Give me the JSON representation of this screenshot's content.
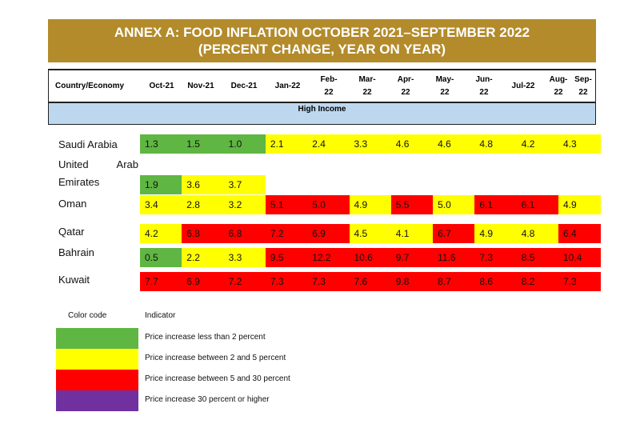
{
  "title": {
    "line1": "ANNEX A: FOOD INFLATION OCTOBER 2021–SEPTEMBER 2022",
    "line2": "(PERCENT CHANGE, YEAR ON YEAR)"
  },
  "columns": {
    "country": "Country/Economy",
    "months": [
      "Oct-21",
      "Nov-21",
      "Dec-21",
      "Jan-22",
      "Feb-\n22",
      "Mar-\n22",
      "Apr-\n22",
      "May-\n22",
      "Jun-\n22",
      "Jul-22",
      "Aug-\n22",
      "Sep-\n22"
    ]
  },
  "group_label": "High Income",
  "rows": [
    {
      "country": "Saudi Arabia",
      "values": [
        "1.3",
        "1.5",
        "1.0",
        "2.1",
        "2.4",
        "3.3",
        "4.6",
        "4.6",
        "4.8",
        "4.2",
        "4.3"
      ],
      "colors": [
        "g",
        "g",
        "g",
        "y",
        "y",
        "y",
        "y",
        "y",
        "y",
        "y",
        "y"
      ]
    },
    {
      "country": "United Arab Emirates",
      "country_line1": "United Arab",
      "country_line2": "Emirates",
      "values": [
        "1.9",
        "3.6",
        "3.7"
      ],
      "colors": [
        "g",
        "y",
        "y"
      ]
    },
    {
      "country": "Oman",
      "values": [
        "3.4",
        "2.8",
        "3.2",
        "5.1",
        "5.0",
        "4.9",
        "5.5",
        "5.0",
        "6.1",
        "6.1",
        "4.9"
      ],
      "colors": [
        "y",
        "y",
        "y",
        "r",
        "r",
        "y",
        "r",
        "y",
        "r",
        "r",
        "y"
      ]
    },
    {
      "country": "Qatar",
      "values": [
        "4.2",
        "6.8",
        "6.8",
        "7.2",
        "6.9",
        "4.5",
        "4.1",
        "6.7",
        "4.9",
        "4.8",
        "6.4"
      ],
      "colors": [
        "y",
        "r",
        "r",
        "r",
        "r",
        "y",
        "y",
        "r",
        "y",
        "y",
        "r"
      ]
    },
    {
      "country": "Bahrain",
      "values": [
        "0.5",
        "2.2",
        "3.3",
        "9.5",
        "12.2",
        "10.6",
        "9.7",
        "11.6",
        "7.3",
        "8.5",
        "10.4"
      ],
      "colors": [
        "g",
        "y",
        "y",
        "r",
        "r",
        "r",
        "r",
        "r",
        "r",
        "r",
        "r"
      ]
    },
    {
      "country": "Kuwait",
      "values": [
        "7.7",
        "6.9",
        "7.2",
        "7.3",
        "7.3",
        "7.6",
        "9.8",
        "8.7",
        "8.6",
        "8.2",
        "7.3"
      ],
      "colors": [
        "r",
        "r",
        "r",
        "r",
        "r",
        "r",
        "r",
        "r",
        "r",
        "r",
        "r"
      ]
    }
  ],
  "legend": {
    "color_code_label": "Color code",
    "indicator_label": "Indicator",
    "items": [
      {
        "label": "Price increase less than 2 percent",
        "color": "#5fb642"
      },
      {
        "label": "Price increase between 2 and 5 percent",
        "color": "#ffff00"
      },
      {
        "label": "Price increase between 5 and 30 percent",
        "color": "#ff0000"
      },
      {
        "label": "Price increase 30 percent or higher",
        "color": "#7030a0"
      }
    ]
  }
}
